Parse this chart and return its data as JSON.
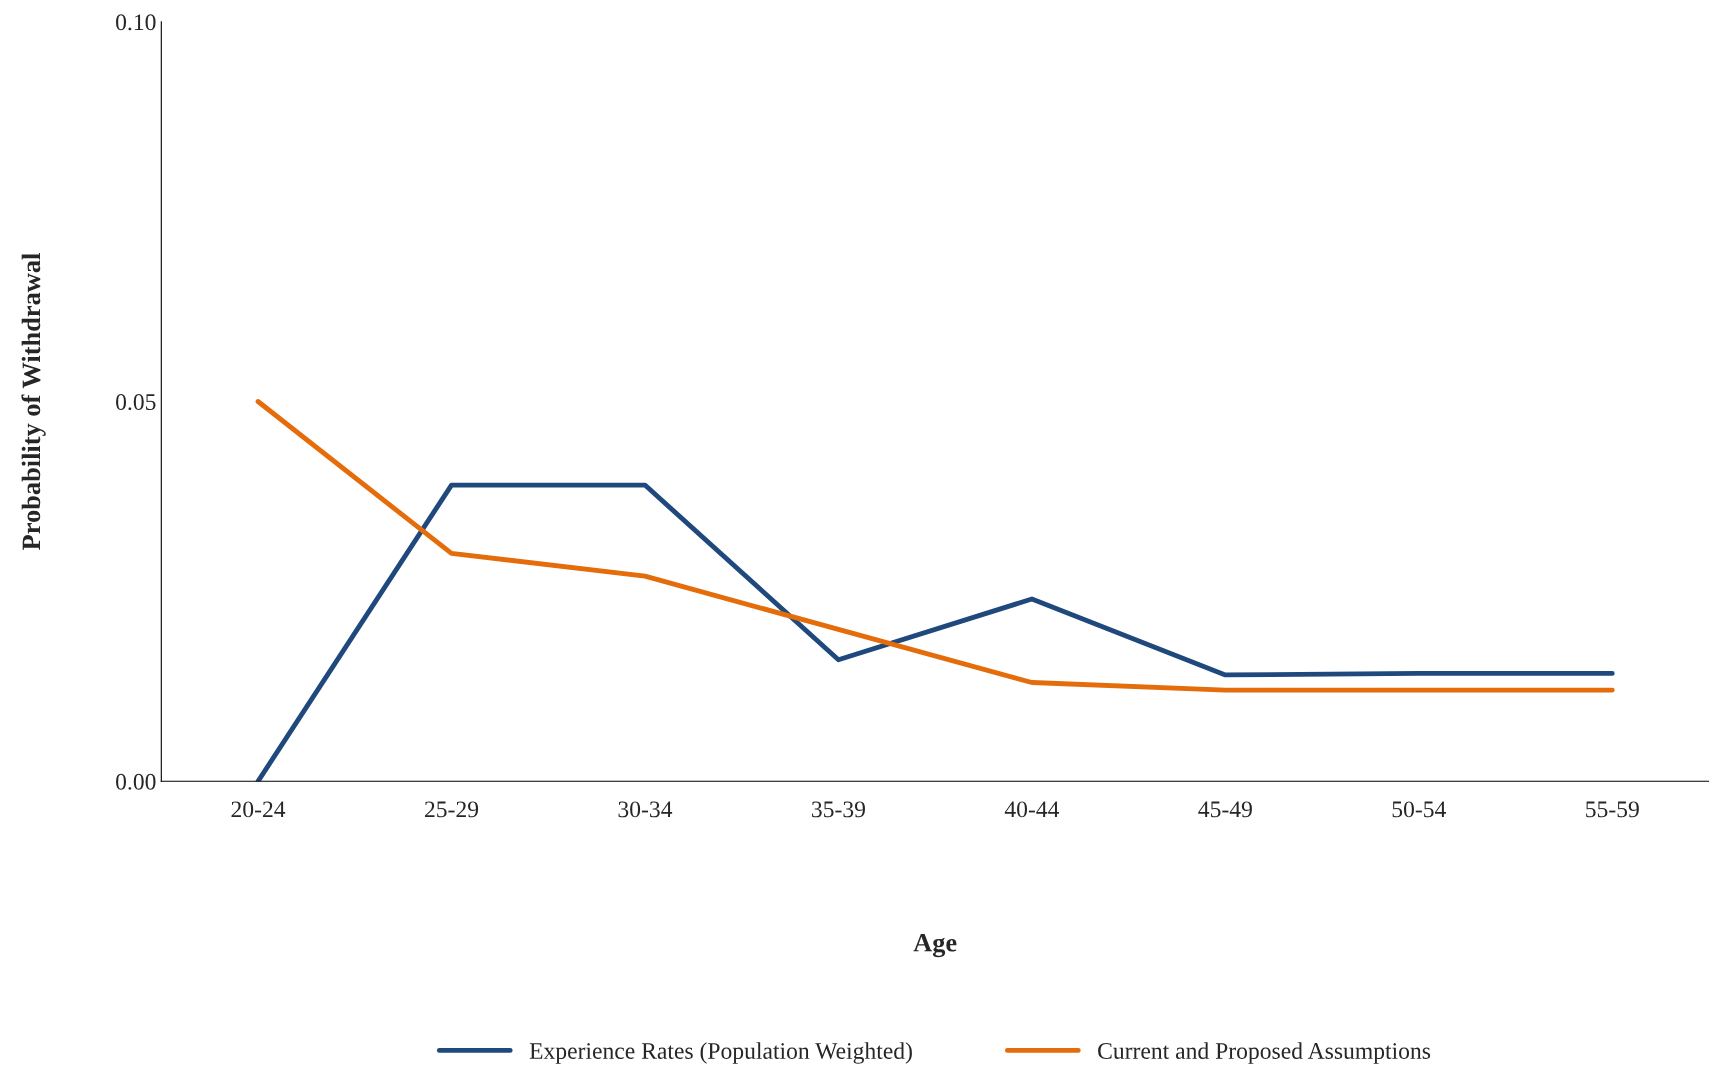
{
  "chart_data": {
    "type": "line",
    "xlabel": "Age",
    "ylabel": "Probability of Withdrawal",
    "categories": [
      "20-24",
      "25-29",
      "30-34",
      "35-39",
      "40-44",
      "45-49",
      "50-54",
      "55-59"
    ],
    "series": [
      {
        "name": "Experience Rates (Population Weighted)",
        "color": "#1f497d",
        "values": [
          0.0,
          0.039,
          0.039,
          0.016,
          0.024,
          0.014,
          0.0142,
          0.0142
        ]
      },
      {
        "name": "Current and Proposed Assumptions",
        "color": "#e46c0a",
        "values": [
          0.05,
          0.03,
          0.027,
          0.02,
          0.013,
          0.012,
          0.012,
          0.012
        ]
      }
    ],
    "ylim": [
      0,
      0.1
    ],
    "yticks": [
      {
        "value": 0,
        "label": "0.00"
      },
      {
        "value": 0.05,
        "label": "0.05"
      },
      {
        "value": 0.1,
        "label": "0.10"
      }
    ],
    "grid": false,
    "legend": "bottom",
    "marker": "none",
    "line_style": "solid"
  }
}
